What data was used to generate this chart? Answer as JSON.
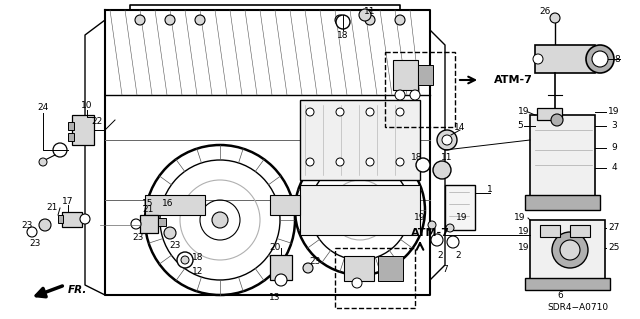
{
  "background_color": "#ffffff",
  "diagram_code": "SDR4−A0710",
  "atm7_label": "ATM-7",
  "fr_label": "FR.",
  "fig_w": 6.4,
  "fig_h": 3.19,
  "dpi": 100,
  "gray_light": "#d8d8d8",
  "gray_mid": "#b0b0b0",
  "gray_dark": "#888888",
  "line_color": "#1a1a1a"
}
